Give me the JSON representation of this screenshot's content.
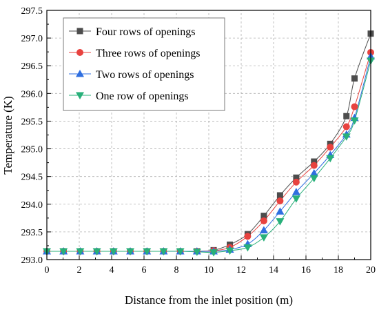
{
  "chart_data": {
    "type": "line",
    "title": "",
    "xlabel": "Distance from the inlet position (m)",
    "ylabel": "Temperature (K)",
    "xlim": [
      0,
      20
    ],
    "ylim": [
      293.0,
      297.5
    ],
    "xticks": [
      0,
      2,
      4,
      6,
      8,
      10,
      12,
      14,
      16,
      18,
      20
    ],
    "yticks": [
      293.0,
      293.5,
      294.0,
      294.5,
      295.0,
      295.5,
      296.0,
      296.5,
      297.0,
      297.5
    ],
    "xtick_labels": [
      "0",
      "2",
      "4",
      "6",
      "8",
      "10",
      "12",
      "14",
      "16",
      "18",
      "20"
    ],
    "ytick_labels": [
      "293.0",
      "293.5",
      "294.0",
      "294.5",
      "295.0",
      "295.5",
      "296.0",
      "296.5",
      "297.0",
      "297.5"
    ],
    "grid": true,
    "legend_position": "top-left",
    "x": [
      0,
      1.03,
      2.06,
      3.09,
      4.12,
      5.15,
      6.18,
      7.21,
      8.24,
      9.27,
      10.3,
      11.3,
      12.4,
      13.4,
      14.4,
      15.4,
      16.5,
      17.5,
      18.5,
      19.0,
      20.0
    ],
    "series": [
      {
        "name": "Four rows of openings",
        "color": "#4d4d4d",
        "marker": "square",
        "values": [
          293.15,
          293.15,
          293.15,
          293.15,
          293.15,
          293.15,
          293.15,
          293.15,
          293.15,
          293.15,
          293.17,
          293.27,
          293.46,
          293.79,
          294.16,
          294.48,
          294.77,
          295.09,
          295.59,
          296.27,
          297.08
        ]
      },
      {
        "name": "Three rows of openings",
        "color": "#e8423f",
        "marker": "circle",
        "values": [
          293.15,
          293.15,
          293.15,
          293.15,
          293.15,
          293.15,
          293.15,
          293.15,
          293.15,
          293.15,
          293.16,
          293.22,
          293.42,
          293.7,
          294.06,
          294.4,
          294.7,
          295.03,
          295.4,
          295.76,
          296.74
        ]
      },
      {
        "name": "Two rows of openings",
        "color": "#2f6fe0",
        "marker": "triangle-up",
        "values": [
          293.15,
          293.15,
          293.15,
          293.15,
          293.15,
          293.15,
          293.15,
          293.15,
          293.15,
          293.15,
          293.15,
          293.18,
          293.28,
          293.53,
          293.87,
          294.22,
          294.56,
          294.89,
          295.26,
          295.56,
          296.67
        ]
      },
      {
        "name": "One row of openings",
        "color": "#28b07a",
        "marker": "triangle-down",
        "values": [
          293.15,
          293.15,
          293.15,
          293.15,
          293.15,
          293.15,
          293.15,
          293.15,
          293.15,
          293.14,
          293.13,
          293.16,
          293.22,
          293.4,
          293.69,
          294.1,
          294.47,
          294.83,
          295.22,
          295.51,
          296.59
        ]
      }
    ]
  }
}
